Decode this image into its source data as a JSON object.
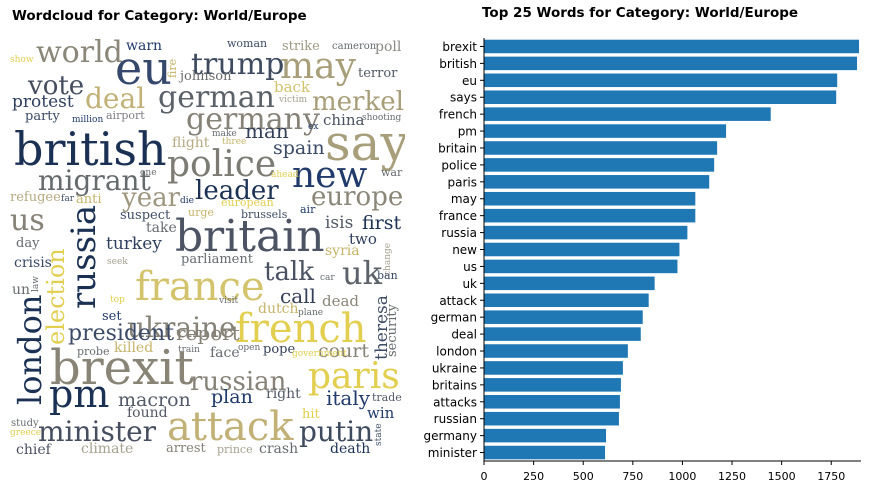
{
  "chart_data": [
    {
      "type": "wordcloud",
      "title": "Wordcloud for Category: World/Europe",
      "words": [
        {
          "text": "world",
          "size": 30,
          "color": "#8a8678"
        },
        {
          "text": "warn",
          "size": 14,
          "color": "#203a6b"
        },
        {
          "text": "woman",
          "size": 11,
          "color": "#3e4c66"
        },
        {
          "text": "strike",
          "size": 13,
          "color": "#9f9a84"
        },
        {
          "text": "cameron",
          "size": 10,
          "color": "#676b6f"
        },
        {
          "text": "poll",
          "size": 14,
          "color": "#888a84"
        },
        {
          "text": "show",
          "size": 9,
          "color": "#e2ce4f"
        },
        {
          "text": "eu",
          "size": 46,
          "color": "#35486b"
        },
        {
          "text": "fire",
          "size": 11,
          "color": "#c5b469"
        },
        {
          "text": "trump",
          "size": 30,
          "color": "#3e4b5f"
        },
        {
          "text": "may",
          "size": 36,
          "color": "#a89f7a"
        },
        {
          "text": "terror",
          "size": 13,
          "color": "#525967"
        },
        {
          "text": "vote",
          "size": 26,
          "color": "#454d5f"
        },
        {
          "text": "johnson",
          "size": 13,
          "color": "#696b6a"
        },
        {
          "text": "deal",
          "size": 28,
          "color": "#c1b176"
        },
        {
          "text": "german",
          "size": 30,
          "color": "#5c6269"
        },
        {
          "text": "back",
          "size": 15,
          "color": "#d3c36d"
        },
        {
          "text": "merkel",
          "size": 26,
          "color": "#a79e78"
        },
        {
          "text": "protest",
          "size": 17,
          "color": "#2f3f5e"
        },
        {
          "text": "victim",
          "size": 9,
          "color": "#a5a18f"
        },
        {
          "text": "party",
          "size": 13,
          "color": "#394865"
        },
        {
          "text": "million",
          "size": 9,
          "color": "#203a6b"
        },
        {
          "text": "airport",
          "size": 11,
          "color": "#7c7e82"
        },
        {
          "text": "germany",
          "size": 30,
          "color": "#868277"
        },
        {
          "text": "ex",
          "size": 9,
          "color": "#203a6b"
        },
        {
          "text": "china",
          "size": 15,
          "color": "#4a5160"
        },
        {
          "text": "shooting",
          "size": 9,
          "color": "#676b6f"
        },
        {
          "text": "british",
          "size": 46,
          "color": "#1b3154"
        },
        {
          "text": "say",
          "size": 50,
          "color": "#a89e7a"
        },
        {
          "text": "make",
          "size": 9,
          "color": "#676b6f"
        },
        {
          "text": "three",
          "size": 9,
          "color": "#c5b469"
        },
        {
          "text": "man",
          "size": 20,
          "color": "#343f58"
        },
        {
          "text": "flight",
          "size": 14,
          "color": "#b5aa80"
        },
        {
          "text": "spain",
          "size": 19,
          "color": "#3b4a66"
        },
        {
          "text": "police",
          "size": 36,
          "color": "#7d7c74"
        },
        {
          "text": "new",
          "size": 36,
          "color": "#203a6b"
        },
        {
          "text": "war",
          "size": 11,
          "color": "#676b6f"
        },
        {
          "text": "migrant",
          "size": 28,
          "color": "#656a6d"
        },
        {
          "text": "one",
          "size": 9,
          "color": "#676b6f"
        },
        {
          "text": "ahead",
          "size": 9,
          "color": "#e2ce4f"
        },
        {
          "text": "leader",
          "size": 26,
          "color": "#1b3154"
        },
        {
          "text": "year",
          "size": 26,
          "color": "#9d967f"
        },
        {
          "text": "europe",
          "size": 26,
          "color": "#8a8678"
        },
        {
          "text": "refugee",
          "size": 13,
          "color": "#b5aa80"
        },
        {
          "text": "far",
          "size": 9,
          "color": "#3e4c66"
        },
        {
          "text": "anti",
          "size": 13,
          "color": "#c5b469"
        },
        {
          "text": "die",
          "size": 9,
          "color": "#203a6b"
        },
        {
          "text": "european",
          "size": 11,
          "color": "#e2ce4f"
        },
        {
          "text": "air",
          "size": 11,
          "color": "#203a6b"
        },
        {
          "text": "us",
          "size": 30,
          "color": "#868277"
        },
        {
          "text": "suspect",
          "size": 13,
          "color": "#3e4c66"
        },
        {
          "text": "urge",
          "size": 11,
          "color": "#c5b469"
        },
        {
          "text": "brussels",
          "size": 11,
          "color": "#3e4c66"
        },
        {
          "text": "isis",
          "size": 17,
          "color": "#525967"
        },
        {
          "text": "first",
          "size": 19,
          "color": "#1b3154"
        },
        {
          "text": "russia",
          "size": 34,
          "color": "#1b3154"
        },
        {
          "text": "take",
          "size": 14,
          "color": "#676b6f"
        },
        {
          "text": "britain",
          "size": 44,
          "color": "#4c5464"
        },
        {
          "text": "syria",
          "size": 14,
          "color": "#c5b469"
        },
        {
          "text": "two",
          "size": 15,
          "color": "#2f3f5e"
        },
        {
          "text": "change",
          "size": 9,
          "color": "#a5a18f"
        },
        {
          "text": "turkey",
          "size": 17,
          "color": "#2f3f5e"
        },
        {
          "text": "day",
          "size": 13,
          "color": "#676b6f"
        },
        {
          "text": "crisis",
          "size": 14,
          "color": "#394865"
        },
        {
          "text": "seek",
          "size": 9,
          "color": "#a5a18f"
        },
        {
          "text": "parliament",
          "size": 13,
          "color": "#676b6f"
        },
        {
          "text": "talk",
          "size": 26,
          "color": "#4a5160"
        },
        {
          "text": "car",
          "size": 9,
          "color": "#676b6f"
        },
        {
          "text": "uk",
          "size": 32,
          "color": "#5c6269"
        },
        {
          "text": "ban",
          "size": 11,
          "color": "#394865"
        },
        {
          "text": "france",
          "size": 40,
          "color": "#d3c36d"
        },
        {
          "text": "law",
          "size": 9,
          "color": "#676b6f"
        },
        {
          "text": "un",
          "size": 14,
          "color": "#676b6f"
        },
        {
          "text": "election",
          "size": 24,
          "color": "#e2ce4f"
        },
        {
          "text": "visit",
          "size": 9,
          "color": "#676b6f"
        },
        {
          "text": "call",
          "size": 20,
          "color": "#343f58"
        },
        {
          "text": "dead",
          "size": 15,
          "color": "#8a8678"
        },
        {
          "text": "top",
          "size": 9,
          "color": "#e2ce4f"
        },
        {
          "text": "set",
          "size": 13,
          "color": "#203a6b"
        },
        {
          "text": "dutch",
          "size": 14,
          "color": "#c5b469"
        },
        {
          "text": "plane",
          "size": 9,
          "color": "#676b6f"
        },
        {
          "text": "ukraine",
          "size": 28,
          "color": "#868277"
        },
        {
          "text": "theresa",
          "size": 17,
          "color": "#3b4a66"
        },
        {
          "text": "london",
          "size": 32,
          "color": "#1b3154"
        },
        {
          "text": "security",
          "size": 13,
          "color": "#676b6f"
        },
        {
          "text": "french",
          "size": 40,
          "color": "#e2ce4f"
        },
        {
          "text": "president",
          "size": 22,
          "color": "#3b4a66"
        },
        {
          "text": "report",
          "size": 20,
          "color": "#868277"
        },
        {
          "text": "court",
          "size": 19,
          "color": "#868277"
        },
        {
          "text": "killed",
          "size": 14,
          "color": "#c5b469"
        },
        {
          "text": "open",
          "size": 9,
          "color": "#676b6f"
        },
        {
          "text": "pope",
          "size": 13,
          "color": "#343f58"
        },
        {
          "text": "probe",
          "size": 11,
          "color": "#676b6f"
        },
        {
          "text": "train",
          "size": 9,
          "color": "#676b6f"
        },
        {
          "text": "face",
          "size": 14,
          "color": "#676b6f"
        },
        {
          "text": "government",
          "size": 9,
          "color": "#e2ce4f"
        },
        {
          "text": "brexit",
          "size": 48,
          "color": "#898576"
        },
        {
          "text": "russian",
          "size": 26,
          "color": "#868277"
        },
        {
          "text": "paris",
          "size": 36,
          "color": "#e2ce4f"
        },
        {
          "text": "pm",
          "size": 38,
          "color": "#1b3154"
        },
        {
          "text": "macron",
          "size": 19,
          "color": "#525967"
        },
        {
          "text": "plan",
          "size": 19,
          "color": "#203a6b"
        },
        {
          "text": "right",
          "size": 14,
          "color": "#525967"
        },
        {
          "text": "italy",
          "size": 20,
          "color": "#203a6b"
        },
        {
          "text": "trade",
          "size": 11,
          "color": "#525967"
        },
        {
          "text": "found",
          "size": 14,
          "color": "#525967"
        },
        {
          "text": "attack",
          "size": 40,
          "color": "#c1b176"
        },
        {
          "text": "hit",
          "size": 13,
          "color": "#e2ce4f"
        },
        {
          "text": "win",
          "size": 15,
          "color": "#203a6b"
        },
        {
          "text": "study",
          "size": 10,
          "color": "#676b6f"
        },
        {
          "text": "minister",
          "size": 28,
          "color": "#454d5f"
        },
        {
          "text": "putin",
          "size": 28,
          "color": "#3e4b5f"
        },
        {
          "text": "greece",
          "size": 9,
          "color": "#e2ce4f"
        },
        {
          "text": "state",
          "size": 9,
          "color": "#3e4c66"
        },
        {
          "text": "chief",
          "size": 14,
          "color": "#4a5160"
        },
        {
          "text": "climate",
          "size": 14,
          "color": "#a5a18f"
        },
        {
          "text": "arrest",
          "size": 13,
          "color": "#868277"
        },
        {
          "text": "prince",
          "size": 11,
          "color": "#a5a18f"
        },
        {
          "text": "crash",
          "size": 14,
          "color": "#676b6f"
        },
        {
          "text": "death",
          "size": 14,
          "color": "#1b3154"
        }
      ]
    },
    {
      "type": "bar",
      "orientation": "horizontal",
      "title": "Top 25 Words for Category: World/Europe",
      "categories": [
        "brexit",
        "british",
        "eu",
        "says",
        "french",
        "pm",
        "britain",
        "police",
        "paris",
        "may",
        "france",
        "russia",
        "new",
        "us",
        "uk",
        "attack",
        "german",
        "deal",
        "london",
        "ukraine",
        "britains",
        "attacks",
        "russian",
        "germany",
        "minister"
      ],
      "values": [
        1890,
        1880,
        1780,
        1775,
        1445,
        1220,
        1175,
        1160,
        1135,
        1065,
        1065,
        1025,
        985,
        975,
        860,
        830,
        800,
        790,
        725,
        700,
        690,
        685,
        680,
        615,
        610
      ],
      "xticks": [
        0,
        250,
        500,
        750,
        1000,
        1250,
        1500,
        1750
      ],
      "xlim": [
        0,
        1900
      ],
      "xlabel": "",
      "ylabel": "",
      "color": "#1f77b4",
      "grid": false
    }
  ]
}
